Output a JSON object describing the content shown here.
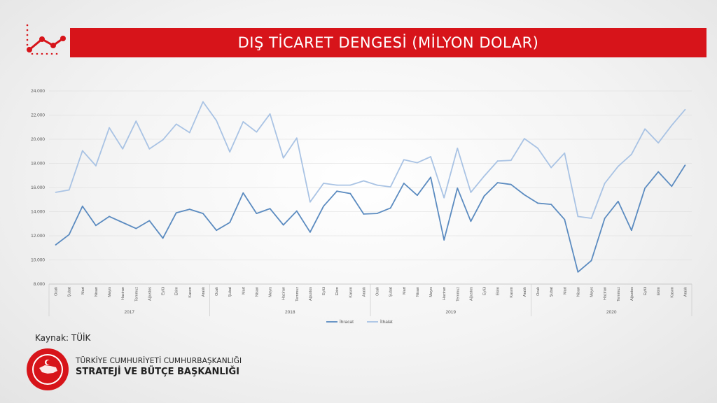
{
  "header": {
    "title": "DIŞ TİCARET DENGESİ (MİLYON DOLAR)"
  },
  "footer": {
    "source": "Kaynak: TÜİK",
    "org_line1": "TÜRKİYE CUMHURİYETİ CUMHURBAŞKANLIĞI",
    "org_line2": "STRATEJİ VE BÜTÇE BAŞKANLIĞI"
  },
  "colors": {
    "accent": "#d7141a",
    "export_line": "#5b8bc0",
    "import_line": "#a9c3e4",
    "axis_text": "#595959",
    "grid": "#d9d9d9"
  },
  "icons": [
    "trend-line-icon",
    "presidency-seal-icon"
  ],
  "chart_data": {
    "type": "line",
    "title": "DIŞ TİCARET DENGESİ (MİLYON DOLAR)",
    "ylim": [
      8000,
      24000
    ],
    "yticks": [
      "8.000",
      "10.000",
      "12.000",
      "14.000",
      "16.000",
      "18.000",
      "20.000",
      "22.000",
      "24.000"
    ],
    "ytick_values": [
      8000,
      10000,
      12000,
      14000,
      16000,
      18000,
      20000,
      22000,
      24000
    ],
    "grid": true,
    "legend": "bottom",
    "years": [
      "2017",
      "2018",
      "2019",
      "2020"
    ],
    "months": [
      "Ocak",
      "Şubat",
      "Mart",
      "Nisan",
      "Mayıs",
      "Haziran",
      "Temmuz",
      "Ağustos",
      "Eylül",
      "Ekim",
      "Kasım",
      "Aralık"
    ],
    "series": [
      {
        "name": "İhracat",
        "color": "#5b8bc0",
        "values": [
          11250,
          12100,
          14450,
          12850,
          13600,
          13100,
          12600,
          13250,
          11800,
          13900,
          14200,
          13850,
          12450,
          13100,
          15550,
          13850,
          14250,
          12900,
          14050,
          12300,
          14450,
          15700,
          15500,
          13800,
          13850,
          14300,
          16350,
          15350,
          16850,
          11650,
          15950,
          13200,
          15300,
          16400,
          16250,
          15400,
          14700,
          14600,
          13350,
          9000,
          9950,
          13450,
          14850,
          12450,
          15950,
          17300,
          16100,
          17850
        ]
      },
      {
        "name": "İthalat",
        "color": "#a9c3e4",
        "values": [
          15600,
          15800,
          19050,
          17800,
          20950,
          19200,
          21500,
          19200,
          19950,
          21250,
          20550,
          23100,
          21550,
          18950,
          21450,
          20600,
          22100,
          18450,
          20100,
          14800,
          16350,
          16200,
          16200,
          16550,
          16200,
          16050,
          18300,
          18050,
          18550,
          15150,
          19250,
          15600,
          16950,
          18200,
          18250,
          20050,
          19250,
          17650,
          18850,
          13600,
          13450,
          16350,
          17750,
          18750,
          20850,
          19700,
          21150,
          22450
        ]
      }
    ]
  }
}
